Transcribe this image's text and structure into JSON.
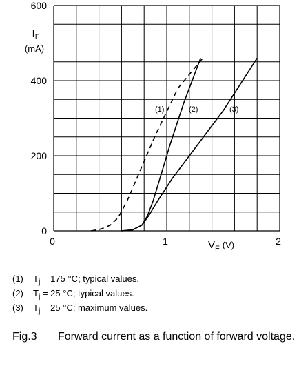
{
  "chart_data": {
    "type": "line",
    "ylabel_main": "I",
    "ylabel_sub": "F",
    "ylabel_unit": "(mA)",
    "xlabel_main": "V",
    "xlabel_sub": "F",
    "xlabel_unit": "(V)",
    "xlim": [
      0,
      2
    ],
    "ylim": [
      0,
      600
    ],
    "x_ticks": [
      0,
      1,
      2
    ],
    "y_ticks": [
      0,
      200,
      400,
      600
    ],
    "grid": true,
    "series": [
      {
        "name": "(1)",
        "dash": true,
        "points": [
          [
            0.33,
            0
          ],
          [
            0.42,
            5
          ],
          [
            0.5,
            15
          ],
          [
            0.57,
            35
          ],
          [
            0.65,
            80
          ],
          [
            0.75,
            150
          ],
          [
            0.9,
            255
          ],
          [
            1.1,
            380
          ],
          [
            1.32,
            460
          ]
        ]
      },
      {
        "name": "(2)",
        "dash": false,
        "points": [
          [
            0.6,
            0
          ],
          [
            0.7,
            3
          ],
          [
            0.78,
            15
          ],
          [
            0.83,
            40
          ],
          [
            0.88,
            80
          ],
          [
            0.94,
            140
          ],
          [
            1.03,
            230
          ],
          [
            1.15,
            340
          ],
          [
            1.3,
            460
          ]
        ]
      },
      {
        "name": "(3)",
        "dash": false,
        "points": [
          [
            0.6,
            0
          ],
          [
            0.7,
            3
          ],
          [
            0.78,
            15
          ],
          [
            0.84,
            40
          ],
          [
            0.92,
            80
          ],
          [
            1.05,
            140
          ],
          [
            1.25,
            220
          ],
          [
            1.5,
            320
          ],
          [
            1.8,
            460
          ]
        ]
      }
    ],
    "curve_labels": [
      "(1)",
      "(2)",
      "(3)"
    ]
  },
  "notes": [
    {
      "num": "(1)",
      "pre": "T",
      "sub": "j",
      "post": " = 175 °C; typical values."
    },
    {
      "num": "(2)",
      "pre": "T",
      "sub": "j",
      "post": " = 25 °C; typical values."
    },
    {
      "num": "(3)",
      "pre": "T",
      "sub": "j",
      "post": " = 25 °C; maximum values."
    }
  ],
  "caption": {
    "figure": "Fig.3",
    "text": "Forward current as a function of forward voltage."
  }
}
